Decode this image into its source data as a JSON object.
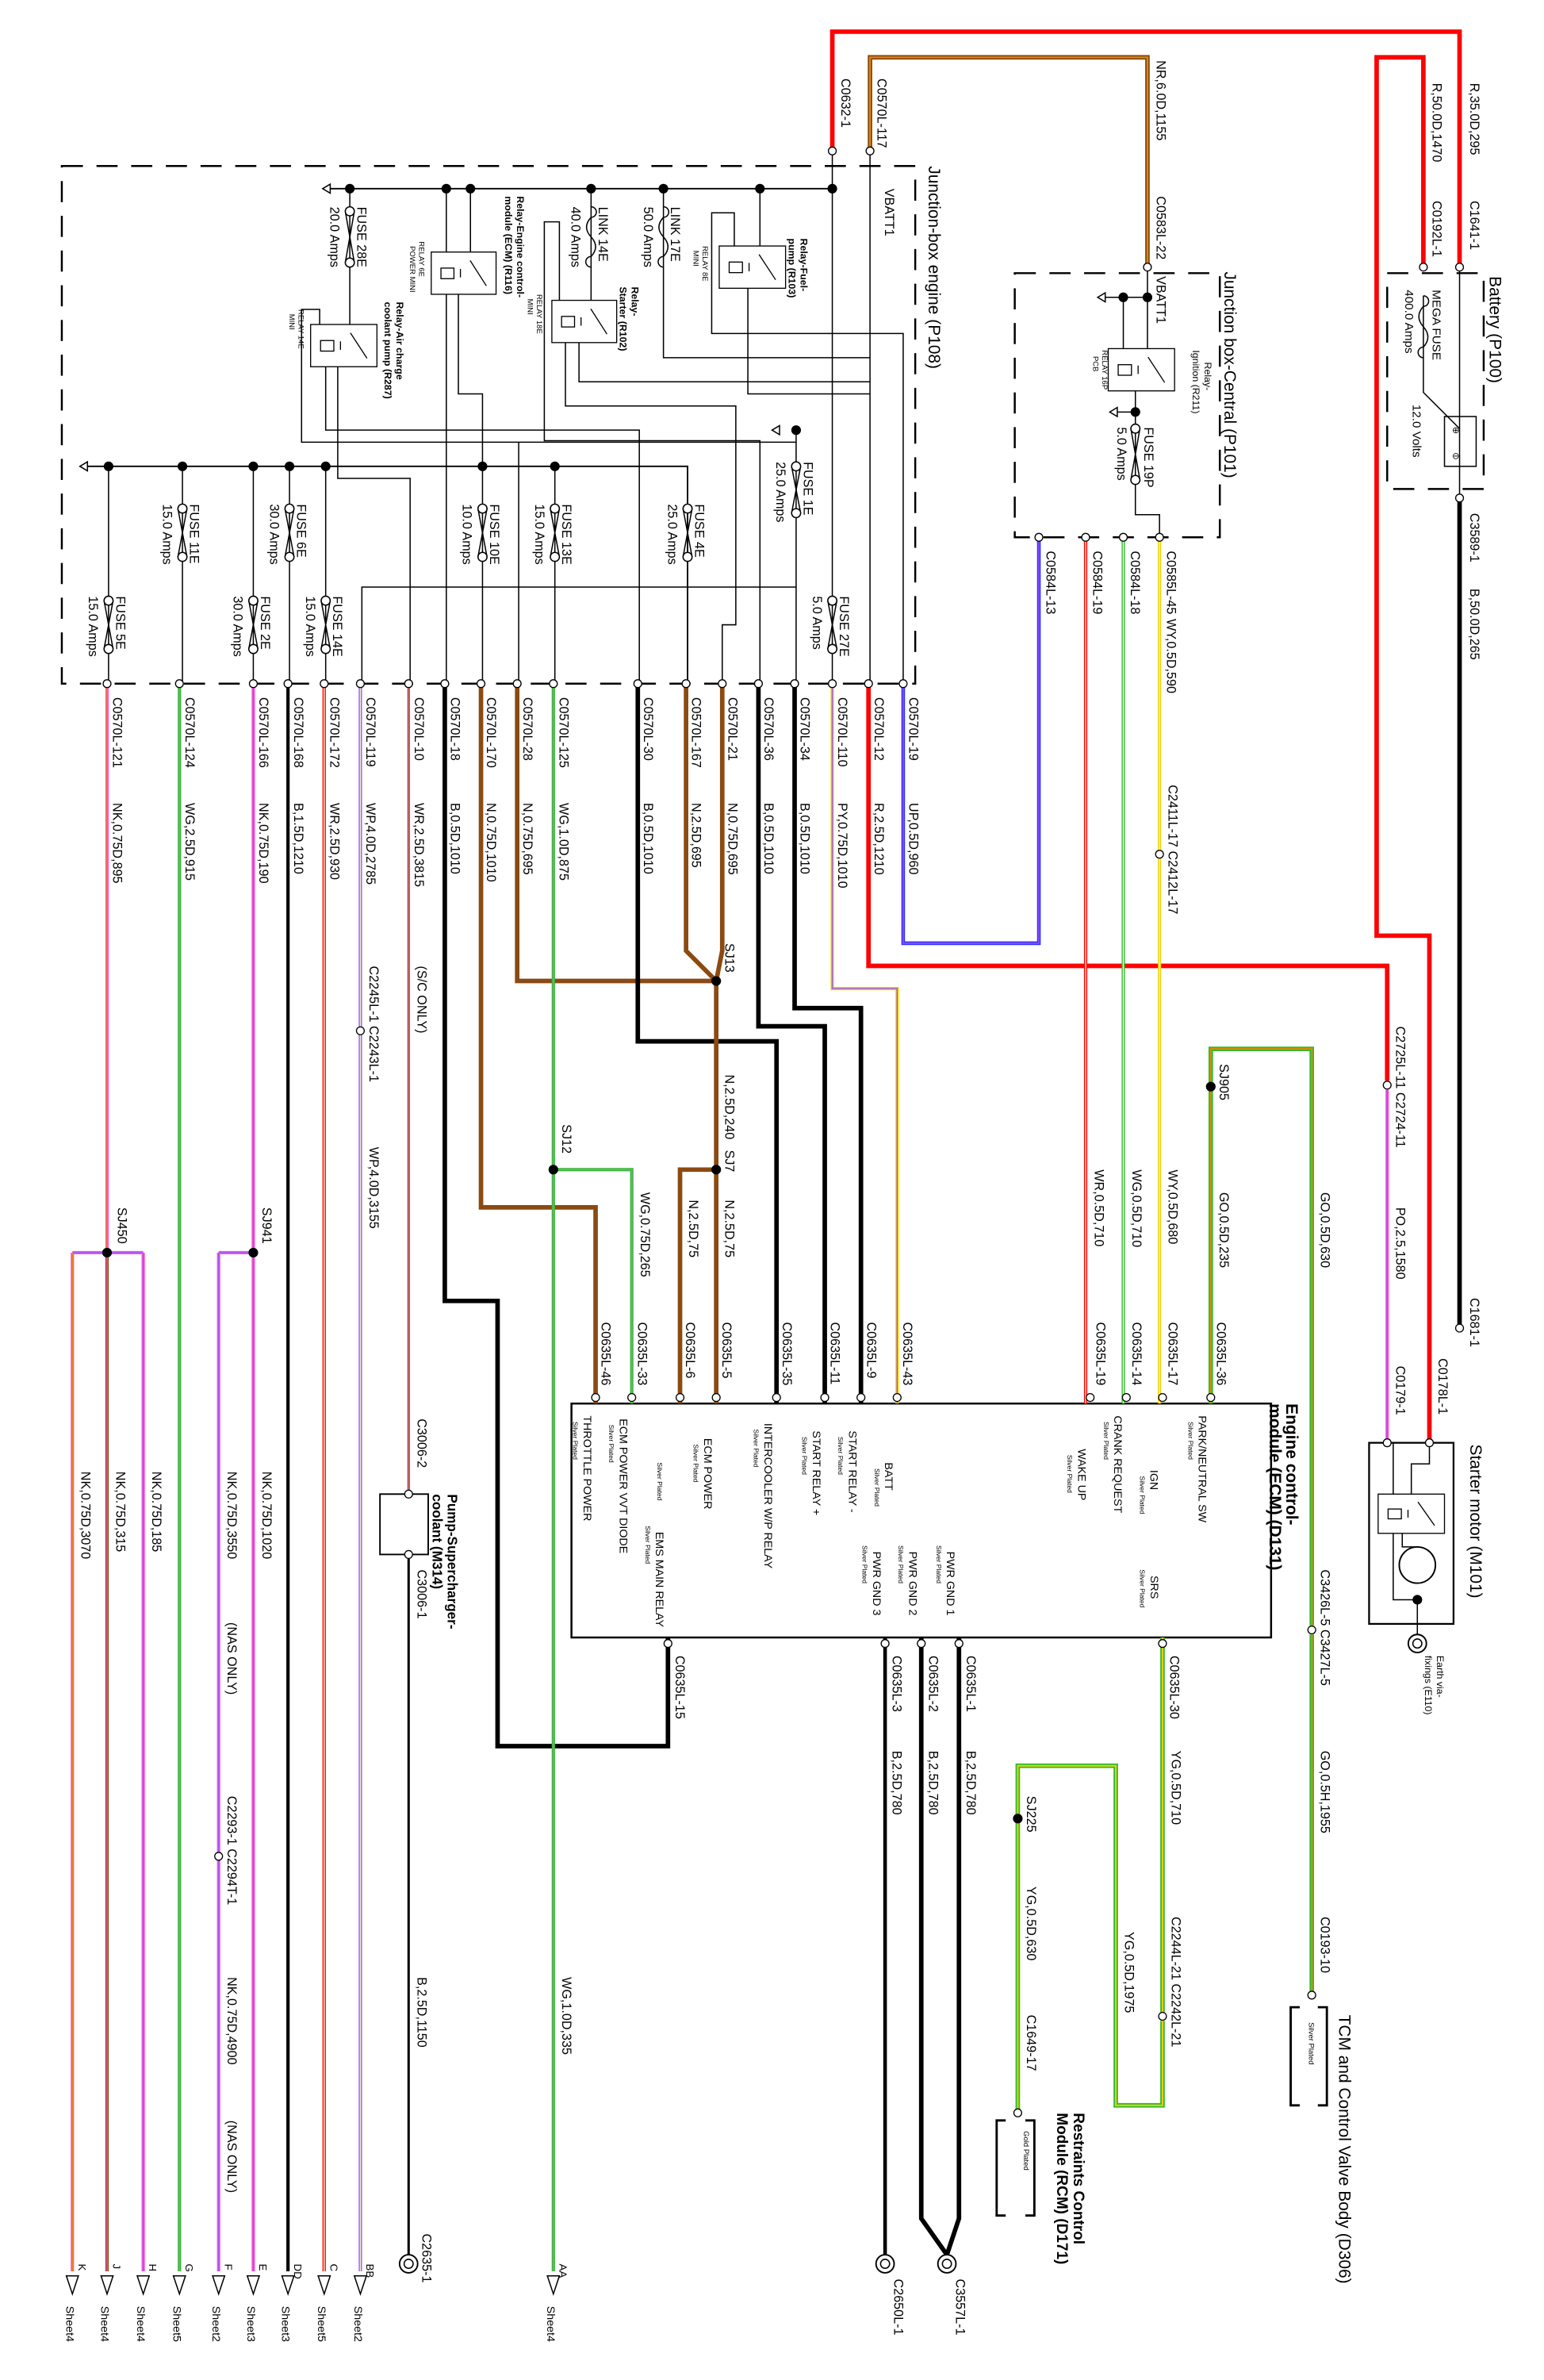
{
  "colors": {
    "red": "#ff0000",
    "black": "#000000",
    "brown": "#8b4a12",
    "green": "#33bb33",
    "pink": "#ff55cc",
    "purple": "#9955ff",
    "blue": "#3030ff",
    "yellow": "#f2d000",
    "orange": "#e08a00",
    "grey": "#999999",
    "white": "#f4f4d0"
  },
  "battery": {
    "title": "Battery (P100)",
    "mega_fuse": "MEGA FUSE",
    "mega_fuse_rating": "400.0 Amps",
    "voltage": "12.0 Volts",
    "wire1_spec": "R,35.0D,295",
    "wire1_connector": "C1641-1",
    "wire2_spec": "R,50.0D,1470",
    "wire2_connector": "C0192L-1",
    "ground_connector": "C3589-1",
    "ground_spec": "B,50.0D,265",
    "ground_end": "C1681-1"
  },
  "jb_central": {
    "title": "Junction box-Central (P101)",
    "vbatt": "VBATT1",
    "in_connector": "C0583L-22",
    "in_spec": "NR,6.0D,1155",
    "relay_name": [
      "Relay-",
      "Ignition (R211)"
    ],
    "relay_type": [
      "RELAY 16P",
      "PCB"
    ],
    "fuse": "FUSE 19P",
    "fuse_rating": "5.0 Amps",
    "outputs": [
      {
        "connector": "C0584L-13"
      },
      {
        "connector": "C0584L-19"
      },
      {
        "connector": "C0584L-18"
      },
      {
        "connector": "C0585L-45",
        "spec": "WY,0.5D,590"
      }
    ]
  },
  "jb_engine": {
    "title": "Junction-box engine (P108)",
    "vbatt": "VBATT1",
    "in_connector_1": "C0632-1",
    "in_connector_2": "C0570L-117",
    "fuses": [
      {
        "name": "FUSE 28E",
        "rating": "20.0 Amps"
      },
      {
        "name": "LINK 14E",
        "rating": "40.0 Amps"
      },
      {
        "name": "LINK 17E",
        "rating": "50.0 Amps"
      },
      {
        "name": "FUSE 1E",
        "rating": "25.0 Amps"
      },
      {
        "name": "FUSE 11E",
        "rating": "15.0 Amps"
      },
      {
        "name": "FUSE 6E",
        "rating": "30.0 Amps"
      },
      {
        "name": "FUSE 10E",
        "rating": "10.0 Amps"
      },
      {
        "name": "FUSE 13E",
        "rating": "15.0 Amps"
      },
      {
        "name": "FUSE 4E",
        "rating": "25.0 Amps"
      },
      {
        "name": "FUSE 5E",
        "rating": "15.0 Amps"
      },
      {
        "name": "FUSE 2E",
        "rating": "30.0 Amps"
      },
      {
        "name": "FUSE 14E",
        "rating": "15.0 Amps"
      },
      {
        "name": "FUSE 27E",
        "rating": "5.0 Amps"
      }
    ],
    "relays": [
      {
        "name": [
          "Relay-Fuel-",
          "pump (R103)"
        ],
        "type": [
          "RELAY 8E",
          "MINI"
        ]
      },
      {
        "name": [
          "Relay-",
          "Starter (R102)"
        ],
        "type": [
          "RELAY 18E",
          "MINI"
        ]
      },
      {
        "name": [
          "Relay-Engine control-",
          "module (ECM) (R116)"
        ],
        "type": [
          "RELAY 6E",
          "POWER MINI"
        ]
      },
      {
        "name": [
          "Relay-Air charge",
          "coolant pump (R287)"
        ],
        "type": [
          "RELAY 14E",
          "MINI"
        ]
      }
    ],
    "outputs": [
      {
        "connector": "C0570L-121",
        "spec": "NK,0.75D,895"
      },
      {
        "connector": "C0570L-124",
        "spec": "WG,2.5D,915"
      },
      {
        "connector": "C0570L-166",
        "spec": "NK,0.75D,190"
      },
      {
        "connector": "C0570L-168",
        "spec": "B,1.5D,1210"
      },
      {
        "connector": "C0570L-172",
        "spec": "WR,2.5D,930"
      },
      {
        "connector": "C0570L-119",
        "spec": "WP,4.0D,2785"
      },
      {
        "connector": "C0570L-10",
        "spec": "WR,2.5D,3815"
      },
      {
        "connector": "C0570L-18",
        "spec": "B,0.5D,1010"
      },
      {
        "connector": "C0570L-170",
        "spec": "N,0.75D,1010"
      },
      {
        "connector": "C0570L-28",
        "spec": "N,0.75D,695"
      },
      {
        "connector": "C0570L-125",
        "spec": "WG,1.0D,875"
      },
      {
        "connector": "C0570L-30",
        "spec": "B,0.5D,1010"
      },
      {
        "connector": "C0570L-167",
        "spec": "N,2.5D,695"
      },
      {
        "connector": "C0570L-21",
        "spec": "N,0.75D,695"
      },
      {
        "connector": "C0570L-36",
        "spec": "B,0.5D,1010"
      },
      {
        "connector": "C0570L-34",
        "spec": "B,0.5D,1010"
      },
      {
        "connector": "C0570L-110",
        "spec": "PY,0.75D,1010"
      },
      {
        "connector": "C0570L-12",
        "spec": "R,2.5D,1210"
      },
      {
        "connector": "C0570L-19",
        "spec": "UP,0.5D,960"
      }
    ]
  },
  "harness": {
    "sj450": "SJ450",
    "k_spec": "NK,0.75D,3070",
    "j_spec": "NK,0.75D,315",
    "h_spec": "NK,0.75D,185",
    "sj941": "SJ941",
    "f_spec1": "NK,0.75D,3550",
    "nas_only_1": "(NAS ONLY)",
    "f_inline": "C2293-1 C2294T-1",
    "f_spec2": "NK,0.75D,4900",
    "nas_only_2": "(NAS ONLY)",
    "e_spec": "NK,0.75D,1020",
    "bb_inline": "C2245L-1 C2243L-1",
    "bb_spec": "WP,4.0D,3155",
    "sc_only": "(S/C ONLY)",
    "pump_in": "C3006-2",
    "pump_name": [
      "Pump-Supercharger-",
      "coolant (M314)"
    ],
    "pump_out": "C3006-1",
    "pump_spec": "B,2.5D,1150",
    "pump_earth": "C2635-1",
    "aa_spec": "WG,1.0D,335",
    "sj12": "SJ12",
    "sj12_spec": "WG,0.75D,265",
    "sj13": "SJ13",
    "sj13_spec": "N,2.5D,240",
    "sj7": "SJ7",
    "sj7_spec_a": "N,2.5D,75",
    "sj7_spec_b": "N,2.5D,75",
    "starter_inline": "C2725L-11 C2724-11",
    "starter_spec": "PO,2.5,1580",
    "jbc_inline": "C2411L-17 C2412L-17",
    "jbc17_spec": "WY,0.5D,680",
    "jbc14_spec": "WG,0.5D,710",
    "jbc19_spec": "WR,0.5D,710",
    "sj905": "SJ905",
    "sj905_spec": "GO,0.5D,235",
    "tcm_spec1": "GO,0.5D,630",
    "tcm_inline": "C3426L-5 C3427L-5",
    "tcm_spec2": "GO,0.5H,1955",
    "tcm_connector": "C0193-10",
    "rcm_spec1": "YG,0.5D,710",
    "rcm_inline": "C2244L-21 C2242L-21",
    "rcm_spec2": "YG,0.5D,1975",
    "sj225": "SJ225",
    "rcm_spec3": "YG,0.5D,630",
    "rcm_connector": "C1649-17",
    "gnd_spec": "B,2.5D,780",
    "gnd_earth_1": "C3557L-1",
    "gnd_earth_2": "C2650L-1"
  },
  "ecm": {
    "title": [
      "Engine control-",
      "module (ECM) (D131)"
    ],
    "plating": "Silver Plated",
    "top_pins": [
      {
        "connector": "C0635L-36",
        "label": "PARK/NEUTRAL SW"
      },
      {
        "connector": "C0635L-17",
        "label": "IGN"
      },
      {
        "connector": "C0635L-14",
        "label": "CRANK REQUEST"
      },
      {
        "connector": "C0635L-19",
        "label": "WAKE UP"
      },
      {
        "connector": "C0635L-43",
        "label": "BATT"
      },
      {
        "connector": "C0635L-9",
        "label": "START RELAY -"
      },
      {
        "connector": "C0635L-11",
        "label": "START RELAY +"
      },
      {
        "connector": "C0635L-35",
        "label": "INTERCOOLER W/P RELAY"
      },
      {
        "connector": "C0635L-5",
        "label": "ECM POWER"
      },
      {
        "connector": "C0635L-6",
        "label": ""
      },
      {
        "connector": "C0635L-33",
        "label": "ECM POWER VVT DIODE"
      },
      {
        "connector": "C0635L-46",
        "label": "THROTTLE POWER"
      }
    ],
    "bottom_pins": [
      {
        "connector": "C0635L-30",
        "label": "SRS"
      },
      {
        "connector": "C0635L-1",
        "label": "PWR GND 1"
      },
      {
        "connector": "C0635L-2",
        "label": "PWR GND 2"
      },
      {
        "connector": "C0635L-3",
        "label": "PWR GND 3"
      },
      {
        "connector": "C0635L-15",
        "label": "EMS MAIN RELAY"
      }
    ]
  },
  "starter": {
    "title": "Starter motor (M101)",
    "connector_1": "C0178L-1",
    "connector_2": "C0179-1",
    "earth": [
      "Earth via-",
      "fixings (E110)"
    ]
  },
  "tcm": {
    "title": "TCM and Control Valve Body (D306)",
    "plating": "Silver Plated"
  },
  "rcm": {
    "title": [
      "Restraints Control",
      "Module (RCM) (D171)"
    ],
    "plating": "Gold Plated"
  },
  "sheet_refs": [
    {
      "pin": "K",
      "sheet": "Sheet4"
    },
    {
      "pin": "J",
      "sheet": "Sheet4"
    },
    {
      "pin": "H",
      "sheet": "Sheet4"
    },
    {
      "pin": "G",
      "sheet": "Sheet5"
    },
    {
      "pin": "F",
      "sheet": "Sheet2"
    },
    {
      "pin": "E",
      "sheet": "Sheet3"
    },
    {
      "pin": "DD",
      "sheet": "Sheet3"
    },
    {
      "pin": "C",
      "sheet": "Sheet5"
    },
    {
      "pin": "BB",
      "sheet": "Sheet2"
    },
    {
      "pin": "AA",
      "sheet": "Sheet4"
    }
  ]
}
